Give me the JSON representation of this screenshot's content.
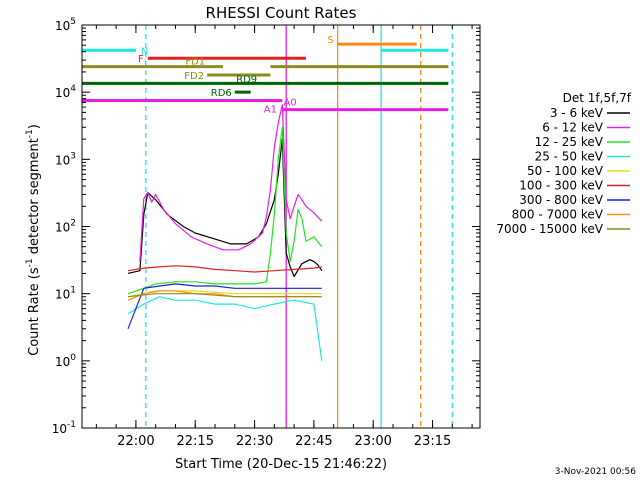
{
  "title": "RHESSI Count Rates",
  "footer_date": "3-Nov-2021 00:56",
  "chart_data": {
    "type": "line",
    "title": "RHESSI Count Rates",
    "xlabel": "Start Time (20-Dec-15 21:46:22)",
    "ylabel": "Count Rate (s^-1 detector segment^-1)",
    "x_unit": "UT time (20-Dec-15)",
    "x_range": [
      "21:46:22",
      "23:27"
    ],
    "x_ticks": [
      "22:00",
      "22:15",
      "22:30",
      "22:45",
      "23:00",
      "23:15"
    ],
    "y_scale": "log",
    "ylim": [
      0.1,
      100000
    ],
    "y_ticks": [
      0.1,
      1,
      10,
      100,
      1000,
      10000,
      100000
    ],
    "y_tick_labels": [
      [
        "10",
        "-1"
      ],
      [
        "10",
        "0"
      ],
      [
        "10",
        "1"
      ],
      [
        "10",
        "2"
      ],
      [
        "10",
        "3"
      ],
      [
        "10",
        "4"
      ],
      [
        "10",
        "5"
      ]
    ],
    "legend": {
      "position": "right",
      "title": "Det 1f,5f,7f",
      "entries": [
        {
          "label": "3 - 6 keV",
          "color": "#000000"
        },
        {
          "label": "6 - 12 keV",
          "color": "#e61ee6"
        },
        {
          "label": "12 - 25 keV",
          "color": "#1ee61e"
        },
        {
          "label": "25 - 50 keV",
          "color": "#1ee6e6"
        },
        {
          "label": "50 - 100 keV",
          "color": "#e6dc1e"
        },
        {
          "label": "100 - 300 keV",
          "color": "#e61e1e"
        },
        {
          "label": "300 - 800 keV",
          "color": "#1e1ee6"
        },
        {
          "label": "800 - 7000 keV",
          "color": "#ff8c1a"
        },
        {
          "label": "7000 - 15000 keV",
          "color": "#8c8c1e"
        }
      ]
    },
    "series": [
      {
        "name": "3 - 6 keV",
        "color": "#000000",
        "x": [
          "21:58",
          "22:01",
          "22:02",
          "22:03",
          "22:05",
          "22:08",
          "22:12",
          "22:15",
          "22:20",
          "22:24",
          "22:28",
          "22:31",
          "22:33",
          "22:35",
          "22:36",
          "22:37",
          "22:38",
          "22:39",
          "22:40",
          "22:42",
          "22:44",
          "22:45",
          "22:46",
          "22:47"
        ],
        "y": [
          20,
          22,
          150,
          320,
          250,
          150,
          100,
          80,
          65,
          55,
          55,
          70,
          110,
          250,
          600,
          2000,
          40,
          25,
          18,
          28,
          32,
          30,
          27,
          22
        ]
      },
      {
        "name": "6 - 12 keV",
        "color": "#e61ee6",
        "x": [
          "22:01",
          "22:02",
          "22:03",
          "22:04",
          "22:05",
          "22:07",
          "22:10",
          "22:14",
          "22:18",
          "22:22",
          "22:26",
          "22:29",
          "22:32",
          "22:33",
          "22:34",
          "22:35",
          "22:36",
          "22:37",
          "22:38",
          "22:39",
          "22:40",
          "22:41",
          "22:42",
          "22:43",
          "22:45",
          "22:47"
        ],
        "y": [
          30,
          260,
          320,
          230,
          300,
          180,
          110,
          70,
          55,
          45,
          45,
          55,
          80,
          140,
          350,
          1500,
          3500,
          6500,
          250,
          130,
          200,
          300,
          250,
          200,
          160,
          120
        ]
      },
      {
        "name": "12 - 25 keV",
        "color": "#1ee61e",
        "x": [
          "21:58",
          "22:02",
          "22:05",
          "22:10",
          "22:15",
          "22:20",
          "22:25",
          "22:30",
          "22:33",
          "22:34",
          "22:35",
          "22:36",
          "22:37",
          "22:38",
          "22:39",
          "22:40",
          "22:41",
          "22:42",
          "22:43",
          "22:45",
          "22:47"
        ],
        "y": [
          10,
          12,
          14,
          15,
          15,
          14,
          14,
          14,
          15,
          40,
          150,
          1000,
          3000,
          80,
          30,
          60,
          180,
          130,
          60,
          70,
          50
        ]
      },
      {
        "name": "25 - 50 keV",
        "color": "#1ee6e6",
        "x": [
          "21:58",
          "22:02",
          "22:06",
          "22:10",
          "22:15",
          "22:20",
          "22:25",
          "22:30",
          "22:35",
          "22:40",
          "22:45",
          "22:47"
        ],
        "y": [
          5,
          7,
          9,
          8,
          8,
          7,
          7,
          6,
          7,
          8,
          7,
          1
        ]
      },
      {
        "name": "50 - 100 keV",
        "color": "#e6dc1e",
        "x": [
          "21:58",
          "22:05",
          "22:15",
          "22:25",
          "22:35",
          "22:45",
          "22:47"
        ],
        "y": [
          9,
          11,
          11,
          10,
          10,
          10,
          10
        ]
      },
      {
        "name": "100 - 300 keV",
        "color": "#e61e1e",
        "x": [
          "21:58",
          "22:02",
          "22:06",
          "22:10",
          "22:15",
          "22:20",
          "22:25",
          "22:30",
          "22:35",
          "22:40",
          "22:45",
          "22:47"
        ],
        "y": [
          22,
          24,
          25,
          26,
          25,
          23,
          22,
          21,
          22,
          23,
          24,
          25
        ]
      },
      {
        "name": "300 - 800 keV",
        "color": "#1e1ee6",
        "x": [
          "21:58",
          "22:02",
          "22:06",
          "22:10",
          "22:15",
          "22:20",
          "22:25",
          "22:30",
          "22:35",
          "22:40",
          "22:45",
          "22:47"
        ],
        "y": [
          3,
          12,
          13,
          14,
          13,
          13,
          12,
          12,
          12,
          12,
          12,
          12
        ]
      },
      {
        "name": "800 - 7000 keV",
        "color": "#ff8c1a",
        "x": [
          "21:58",
          "22:02",
          "22:06",
          "22:10",
          "22:15",
          "22:20",
          "22:25",
          "22:30",
          "22:35",
          "22:40",
          "22:45",
          "22:47"
        ],
        "y": [
          8,
          10,
          11,
          11,
          10,
          10,
          9,
          9,
          9,
          9,
          9,
          9
        ]
      },
      {
        "name": "7000 - 15000 keV",
        "color": "#8c8c1e",
        "x": [
          "21:58",
          "22:05",
          "22:15",
          "22:25",
          "22:35",
          "22:45",
          "22:47"
        ],
        "y": [
          9,
          10,
          10,
          9,
          9,
          9,
          9
        ]
      }
    ],
    "flag_bars": [
      {
        "label": "N",
        "color": "#1ee6e6",
        "y": 42000,
        "segments": [
          [
            "21:46:22",
            "22:00"
          ],
          [
            "23:02",
            "23:19"
          ]
        ]
      },
      {
        "label": "F",
        "color": "#e61e1e",
        "y": 32000,
        "segments": [
          [
            "22:03",
            "22:43"
          ]
        ]
      },
      {
        "label": "FD1",
        "color": "#8c8c1e",
        "y": 24000,
        "segments": [
          [
            "21:46:22",
            "22:22"
          ],
          [
            "22:34",
            "23:19"
          ]
        ]
      },
      {
        "label": "FD2",
        "color": "#8c8c1e",
        "y": 18000,
        "segments": [
          [
            "22:18",
            "22:34"
          ]
        ]
      },
      {
        "label": "RD9",
        "color": "#006400",
        "y": 13500,
        "segments": [
          [
            "21:46:22",
            "23:19"
          ]
        ]
      },
      {
        "label": "RD6",
        "color": "#006400",
        "y": 10000,
        "segments": [
          [
            "22:25",
            "22:29"
          ]
        ]
      },
      {
        "label": "A1",
        "color": "#e61ee6",
        "y": 7500,
        "segments": [
          [
            "21:46:22",
            "22:37"
          ]
        ]
      },
      {
        "label": "A0",
        "color": "#e61ee6",
        "y": 5500,
        "segments": [
          [
            "22:37",
            "23:19"
          ]
        ]
      },
      {
        "label": "S",
        "color": "#ff8c1a",
        "y": 52000,
        "segments": [
          [
            "22:51",
            "23:11"
          ]
        ]
      }
    ],
    "vertical_lines": [
      {
        "time": "22:02:30",
        "color": "#1ee6e6",
        "style": "dashed"
      },
      {
        "time": "22:51",
        "color": "#ff8c1a",
        "style": "solid"
      },
      {
        "time": "23:02",
        "color": "#1ee6e6",
        "style": "solid"
      },
      {
        "time": "23:12",
        "color": "#ff8c1a",
        "style": "dashed"
      },
      {
        "time": "23:20",
        "color": "#1ee6e6",
        "style": "dashed"
      },
      {
        "time": "22:38",
        "color": "#e61ee6",
        "style": "solid"
      }
    ]
  }
}
